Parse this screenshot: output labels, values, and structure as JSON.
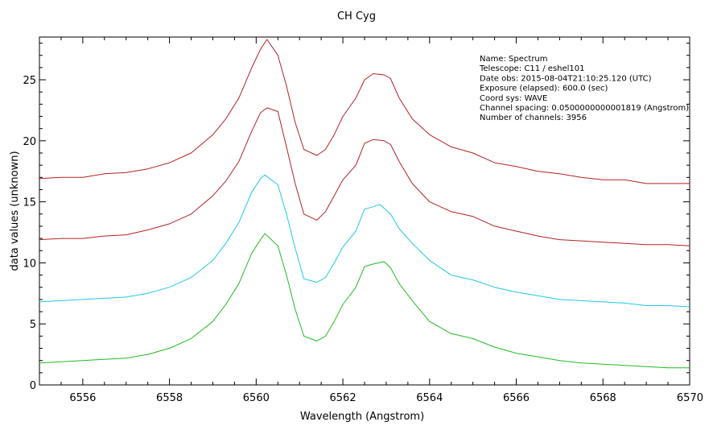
{
  "chart_data": {
    "type": "line",
    "title": "CH Cyg",
    "xlabel": "Wavelength (Angstrom)",
    "ylabel": "data values (unknown)",
    "xlim": [
      6555,
      6570
    ],
    "ylim": [
      0,
      28.5
    ],
    "x_ticks": [
      6556,
      6558,
      6560,
      6562,
      6564,
      6566,
      6568,
      6570
    ],
    "y_ticks": [
      0,
      5,
      10,
      15,
      20,
      25
    ],
    "grid": false,
    "legend": "none",
    "annotations": [
      "Name: Spectrum",
      "Telescope: C11 / eshel101",
      "Date obs: 2015-08-04T21:10:25.120 (UTC)",
      "Exposure (elapsed): 600.0 (sec)",
      "Coord sys: WAVE",
      "Channel spacing: 0.0500000000001819 (Angstrom)",
      "Number of channels: 3956"
    ],
    "series": [
      {
        "color": "#b22222",
        "points": [
          [
            6555,
            16.9
          ],
          [
            6555.5,
            17.0
          ],
          [
            6556,
            17.0
          ],
          [
            6556.5,
            17.3
          ],
          [
            6557,
            17.4
          ],
          [
            6557.5,
            17.7
          ],
          [
            6558,
            18.2
          ],
          [
            6558.5,
            19.0
          ],
          [
            6559,
            20.5
          ],
          [
            6559.3,
            21.8
          ],
          [
            6559.6,
            23.5
          ],
          [
            6559.9,
            26.0
          ],
          [
            6560.1,
            27.5
          ],
          [
            6560.25,
            28.3
          ],
          [
            6560.5,
            27.0
          ],
          [
            6560.7,
            24.5
          ],
          [
            6560.9,
            21.5
          ],
          [
            6561.1,
            19.3
          ],
          [
            6561.4,
            18.8
          ],
          [
            6561.6,
            19.3
          ],
          [
            6561.8,
            20.5
          ],
          [
            6562.0,
            22.0
          ],
          [
            6562.3,
            23.5
          ],
          [
            6562.5,
            25.0
          ],
          [
            6562.7,
            25.5
          ],
          [
            6562.95,
            25.4
          ],
          [
            6563.1,
            25.1
          ],
          [
            6563.3,
            23.5
          ],
          [
            6563.6,
            21.8
          ],
          [
            6564.0,
            20.5
          ],
          [
            6564.5,
            19.5
          ],
          [
            6565,
            19.0
          ],
          [
            6565.5,
            18.2
          ],
          [
            6566,
            17.9
          ],
          [
            6566.5,
            17.5
          ],
          [
            6567,
            17.3
          ],
          [
            6567.5,
            17.0
          ],
          [
            6568,
            16.8
          ],
          [
            6568.5,
            16.8
          ],
          [
            6569,
            16.5
          ],
          [
            6569.5,
            16.5
          ],
          [
            6570,
            16.5
          ]
        ]
      },
      {
        "color": "#b22222",
        "points": [
          [
            6555,
            11.9
          ],
          [
            6555.5,
            12.0
          ],
          [
            6556,
            12.0
          ],
          [
            6556.5,
            12.2
          ],
          [
            6557,
            12.3
          ],
          [
            6557.5,
            12.7
          ],
          [
            6558,
            13.2
          ],
          [
            6558.5,
            14.0
          ],
          [
            6559,
            15.5
          ],
          [
            6559.3,
            16.7
          ],
          [
            6559.6,
            18.3
          ],
          [
            6559.9,
            20.8
          ],
          [
            6560.1,
            22.3
          ],
          [
            6560.25,
            22.7
          ],
          [
            6560.5,
            22.4
          ],
          [
            6560.7,
            19.5
          ],
          [
            6560.9,
            16.5
          ],
          [
            6561.1,
            14.0
          ],
          [
            6561.4,
            13.5
          ],
          [
            6561.6,
            14.2
          ],
          [
            6561.8,
            15.5
          ],
          [
            6562.0,
            16.8
          ],
          [
            6562.3,
            18.0
          ],
          [
            6562.5,
            19.8
          ],
          [
            6562.7,
            20.1
          ],
          [
            6562.95,
            20.0
          ],
          [
            6563.1,
            19.7
          ],
          [
            6563.3,
            18.3
          ],
          [
            6563.6,
            16.5
          ],
          [
            6564.0,
            15.0
          ],
          [
            6564.5,
            14.2
          ],
          [
            6565,
            13.8
          ],
          [
            6565.5,
            13.0
          ],
          [
            6566,
            12.6
          ],
          [
            6566.5,
            12.2
          ],
          [
            6567,
            11.9
          ],
          [
            6567.5,
            11.8
          ],
          [
            6568,
            11.7
          ],
          [
            6568.5,
            11.6
          ],
          [
            6569,
            11.5
          ],
          [
            6569.5,
            11.5
          ],
          [
            6570,
            11.4
          ]
        ]
      },
      {
        "color": "#1ec8e6",
        "points": [
          [
            6555,
            6.8
          ],
          [
            6555.5,
            6.9
          ],
          [
            6556,
            7.0
          ],
          [
            6556.5,
            7.1
          ],
          [
            6557,
            7.2
          ],
          [
            6557.5,
            7.5
          ],
          [
            6558,
            8.0
          ],
          [
            6558.5,
            8.8
          ],
          [
            6559,
            10.2
          ],
          [
            6559.3,
            11.6
          ],
          [
            6559.6,
            13.3
          ],
          [
            6559.9,
            15.8
          ],
          [
            6560.1,
            16.9
          ],
          [
            6560.2,
            17.2
          ],
          [
            6560.5,
            16.4
          ],
          [
            6560.7,
            14.0
          ],
          [
            6560.9,
            11.2
          ],
          [
            6561.1,
            8.7
          ],
          [
            6561.4,
            8.4
          ],
          [
            6561.6,
            8.8
          ],
          [
            6561.8,
            10.0
          ],
          [
            6562.0,
            11.3
          ],
          [
            6562.3,
            12.6
          ],
          [
            6562.5,
            14.4
          ],
          [
            6562.7,
            14.6
          ],
          [
            6562.85,
            14.8
          ],
          [
            6563.1,
            14.0
          ],
          [
            6563.3,
            12.8
          ],
          [
            6563.6,
            11.6
          ],
          [
            6564.0,
            10.2
          ],
          [
            6564.5,
            9.0
          ],
          [
            6565,
            8.6
          ],
          [
            6565.5,
            8.0
          ],
          [
            6566,
            7.6
          ],
          [
            6566.5,
            7.3
          ],
          [
            6567,
            7.0
          ],
          [
            6567.5,
            6.9
          ],
          [
            6568,
            6.8
          ],
          [
            6568.5,
            6.7
          ],
          [
            6569,
            6.5
          ],
          [
            6569.5,
            6.5
          ],
          [
            6570,
            6.4
          ]
        ]
      },
      {
        "color": "#22bb22",
        "points": [
          [
            6555,
            1.8
          ],
          [
            6555.5,
            1.9
          ],
          [
            6556,
            2.0
          ],
          [
            6556.5,
            2.1
          ],
          [
            6557,
            2.2
          ],
          [
            6557.5,
            2.5
          ],
          [
            6558,
            3.0
          ],
          [
            6558.5,
            3.8
          ],
          [
            6559,
            5.2
          ],
          [
            6559.3,
            6.6
          ],
          [
            6559.6,
            8.3
          ],
          [
            6559.9,
            10.8
          ],
          [
            6560.1,
            11.9
          ],
          [
            6560.2,
            12.4
          ],
          [
            6560.5,
            11.4
          ],
          [
            6560.7,
            9.0
          ],
          [
            6560.9,
            6.2
          ],
          [
            6561.1,
            4.0
          ],
          [
            6561.4,
            3.6
          ],
          [
            6561.6,
            4.0
          ],
          [
            6561.8,
            5.2
          ],
          [
            6562.0,
            6.6
          ],
          [
            6562.3,
            8.0
          ],
          [
            6562.5,
            9.7
          ],
          [
            6562.7,
            9.9
          ],
          [
            6562.95,
            10.1
          ],
          [
            6563.1,
            9.6
          ],
          [
            6563.3,
            8.3
          ],
          [
            6563.6,
            6.9
          ],
          [
            6564.0,
            5.2
          ],
          [
            6564.5,
            4.2
          ],
          [
            6565,
            3.8
          ],
          [
            6565.5,
            3.1
          ],
          [
            6566,
            2.6
          ],
          [
            6566.5,
            2.3
          ],
          [
            6567,
            2.0
          ],
          [
            6567.5,
            1.8
          ],
          [
            6568,
            1.7
          ],
          [
            6568.5,
            1.6
          ],
          [
            6569,
            1.5
          ],
          [
            6569.5,
            1.4
          ],
          [
            6570,
            1.4
          ]
        ]
      }
    ]
  }
}
